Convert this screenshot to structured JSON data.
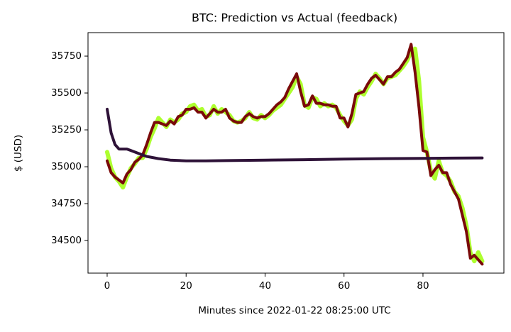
{
  "chart_data": {
    "type": "line",
    "title": "BTC: Prediction vs Actual (feedback)",
    "x_label": "Minutes since 2022-01-22 08:25:00 UTC",
    "y_label": "$ (USD)",
    "xlim": [
      -4.85,
      100.5
    ],
    "ylim": [
      34279,
      35909
    ],
    "xticks": [
      0,
      20,
      40,
      60,
      80
    ],
    "yticks": [
      34500,
      34750,
      35000,
      35250,
      35500,
      35750
    ],
    "series": [
      {
        "color": "#adff2f",
        "width": 6,
        "x": [
          0,
          1,
          2,
          3,
          4,
          5,
          6,
          7,
          8,
          9,
          10,
          11,
          12,
          13,
          14,
          15,
          16,
          17,
          18,
          19,
          20,
          21,
          22,
          23,
          24,
          25,
          26,
          27,
          28,
          29,
          30,
          31,
          32,
          33,
          34,
          35,
          36,
          37,
          38,
          39,
          40,
          41,
          42,
          43,
          44,
          45,
          46,
          47,
          48,
          49,
          50,
          51,
          52,
          53,
          54,
          55,
          56,
          57,
          58,
          59,
          60,
          61,
          62,
          63,
          64,
          65,
          66,
          67,
          68,
          69,
          70,
          71,
          72,
          73,
          74,
          75,
          76,
          77,
          78,
          79,
          80,
          81,
          82,
          83,
          84,
          85,
          86,
          87,
          88,
          89,
          90,
          91,
          92,
          93,
          94,
          95
        ],
        "values": [
          35100,
          34990,
          34930,
          34900,
          34860,
          34930,
          34990,
          35020,
          35060,
          35060,
          35120,
          35200,
          35260,
          35330,
          35300,
          35270,
          35320,
          35300,
          35320,
          35360,
          35370,
          35410,
          35420,
          35380,
          35390,
          35340,
          35350,
          35410,
          35360,
          35390,
          35370,
          35350,
          35310,
          35300,
          35310,
          35330,
          35370,
          35330,
          35320,
          35350,
          35330,
          35350,
          35380,
          35400,
          35420,
          35460,
          35500,
          35540,
          35610,
          35560,
          35420,
          35400,
          35470,
          35460,
          35410,
          35430,
          35410,
          35420,
          35400,
          35350,
          35310,
          35280,
          35320,
          35460,
          35510,
          35490,
          35540,
          35580,
          35630,
          35600,
          35560,
          35600,
          35610,
          35620,
          35650,
          35680,
          35720,
          35780,
          35800,
          35580,
          35200,
          35100,
          34970,
          34920,
          35040,
          34960,
          34940,
          34900,
          34830,
          34800,
          34720,
          34600,
          34420,
          34360,
          34420,
          34360
        ]
      },
      {
        "color": "#7a0a0a",
        "width": 4,
        "x": [
          0,
          1,
          2,
          3,
          4,
          5,
          6,
          7,
          8,
          9,
          10,
          11,
          12,
          13,
          14,
          15,
          16,
          17,
          18,
          19,
          20,
          21,
          22,
          23,
          24,
          25,
          26,
          27,
          28,
          29,
          30,
          31,
          32,
          33,
          34,
          35,
          36,
          37,
          38,
          39,
          40,
          41,
          42,
          43,
          44,
          45,
          46,
          47,
          48,
          49,
          50,
          51,
          52,
          53,
          54,
          55,
          56,
          57,
          58,
          59,
          60,
          61,
          62,
          63,
          64,
          65,
          66,
          67,
          68,
          69,
          70,
          71,
          72,
          73,
          74,
          75,
          76,
          77,
          78,
          79,
          80,
          81,
          82,
          83,
          84,
          85,
          86,
          87,
          88,
          89,
          90,
          91,
          92,
          93,
          94,
          95
        ],
        "values": [
          35040,
          34960,
          34930,
          34910,
          34890,
          34950,
          34980,
          35030,
          35050,
          35080,
          35150,
          35230,
          35300,
          35300,
          35290,
          35280,
          35310,
          35290,
          35340,
          35350,
          35390,
          35390,
          35400,
          35370,
          35370,
          35330,
          35360,
          35390,
          35370,
          35370,
          35390,
          35330,
          35310,
          35300,
          35300,
          35340,
          35360,
          35340,
          35330,
          35340,
          35340,
          35360,
          35390,
          35420,
          35440,
          35470,
          35530,
          35580,
          35630,
          35510,
          35410,
          35420,
          35480,
          35430,
          35430,
          35420,
          35420,
          35410,
          35410,
          35330,
          35330,
          35270,
          35360,
          35490,
          35500,
          35510,
          35560,
          35600,
          35620,
          35590,
          35560,
          35610,
          35610,
          35640,
          35660,
          35700,
          35740,
          35830,
          35640,
          35400,
          35110,
          35100,
          34940,
          34980,
          35010,
          34960,
          34960,
          34880,
          34830,
          34780,
          34670,
          34560,
          34380,
          34400,
          34370,
          34340
        ]
      },
      {
        "color": "#2e1238",
        "width": 4,
        "x": [
          0,
          1,
          2,
          3,
          4,
          5,
          6,
          8,
          10,
          13,
          16,
          20,
          25,
          30,
          40,
          50,
          60,
          70,
          80,
          95
        ],
        "values": [
          35390,
          35230,
          35150,
          35120,
          35120,
          35120,
          35110,
          35090,
          35070,
          35055,
          35045,
          35040,
          35040,
          35042,
          35045,
          35048,
          35052,
          35055,
          35057,
          35060
        ]
      }
    ]
  }
}
